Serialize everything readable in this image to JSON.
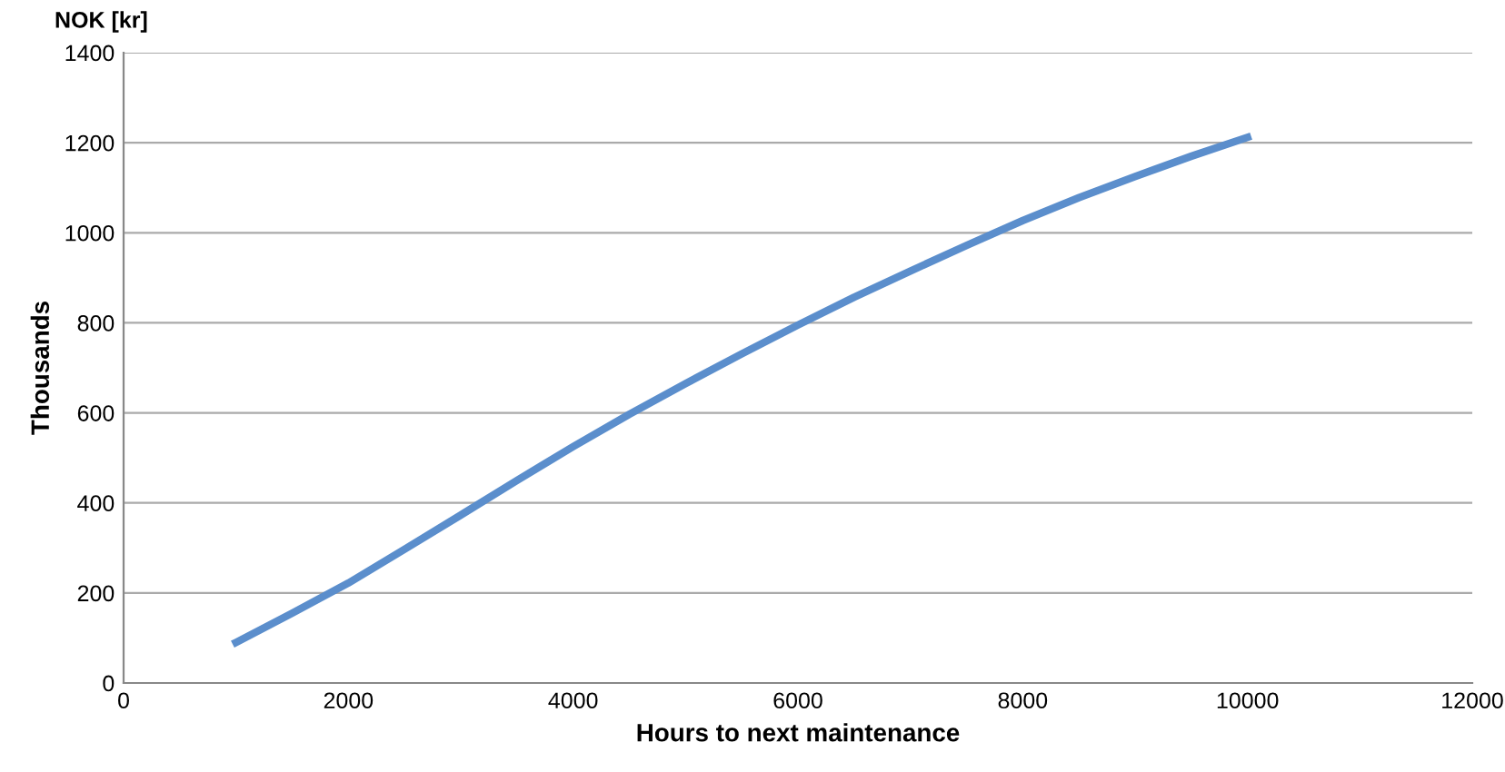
{
  "chart_data": {
    "type": "line",
    "xlabel": "Hours to next maintenance",
    "ylabel": "Thousands",
    "annotations": [
      "NOK [kr]"
    ],
    "x": [
      1000,
      1500,
      2000,
      2500,
      3000,
      3500,
      4000,
      4500,
      5000,
      5500,
      6000,
      6500,
      7000,
      7500,
      8000,
      8500,
      9000,
      9500,
      10000
    ],
    "series": [
      {
        "color": "#5b8ecc",
        "values": [
          90,
          155,
          222,
          297,
          373,
          450,
          525,
          597,
          665,
          731,
          795,
          857,
          915,
          972,
          1027,
          1078,
          1125,
          1170,
          1212
        ]
      }
    ],
    "xlim": [
      0,
      12000
    ],
    "xticks": [
      0,
      2000,
      4000,
      6000,
      8000,
      10000,
      12000
    ],
    "ylim": [
      0,
      1400
    ],
    "yticks": [
      0,
      200,
      400,
      600,
      800,
      1000,
      1200,
      1400
    ],
    "grid": "y",
    "marker": "none",
    "line_style": "solid",
    "legend": false
  }
}
